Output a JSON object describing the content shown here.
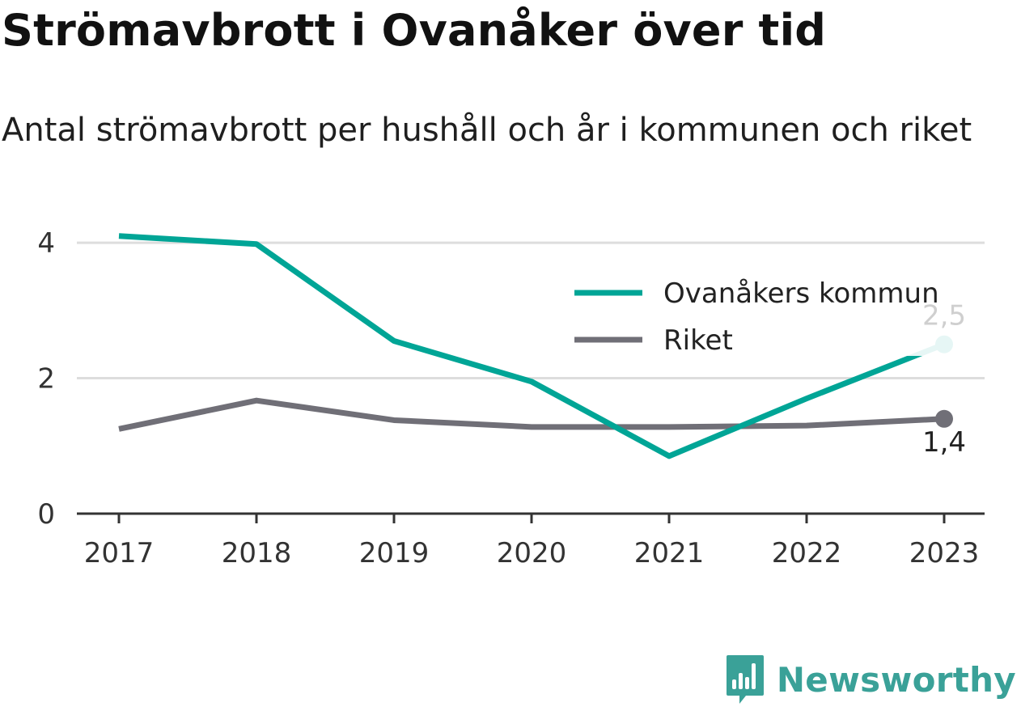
{
  "colors": {
    "kommun": "#00a596",
    "riket": "#706f77",
    "grid": "#dddddd",
    "axis": "#333333",
    "brand": "#3aa198",
    "kommun_label": "#cfcfcf",
    "riket_label": "#222222"
  },
  "brand": {
    "name": "Newsworthy",
    "icon": "newsworthy-logo-icon"
  },
  "chart_data": {
    "type": "line",
    "title": "Strömavbrott i Ovanåker över tid",
    "subtitle": "Antal strömavbrott per hushåll och år i kommunen och riket",
    "x": [
      "2017",
      "2018",
      "2019",
      "2020",
      "2021",
      "2022",
      "2023"
    ],
    "series": [
      {
        "name": "Ovanåkers kommun",
        "values": [
          4.1,
          3.98,
          2.55,
          1.95,
          0.85,
          1.7,
          2.5
        ],
        "end_label": "2,5"
      },
      {
        "name": "Riket",
        "values": [
          1.25,
          1.67,
          1.38,
          1.28,
          1.28,
          1.3,
          1.4
        ],
        "end_label": "1,4"
      }
    ],
    "yticks": [
      0,
      2,
      4
    ],
    "ytick_labels": [
      "0",
      "2",
      "4"
    ],
    "ylim": [
      0,
      4.3
    ],
    "grid": true,
    "legend_position": "top-right"
  }
}
